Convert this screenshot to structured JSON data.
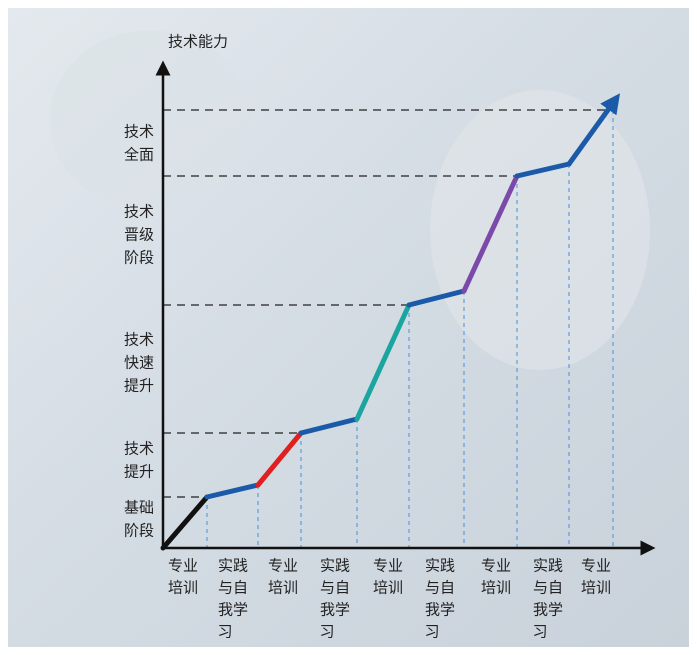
{
  "axis_title": "技术能力",
  "stages": [
    {
      "lines": [
        "技术",
        "全面"
      ]
    },
    {
      "lines": [
        "技术",
        "晋级",
        "阶段"
      ]
    },
    {
      "lines": [
        "技术",
        "快速",
        "提升"
      ]
    },
    {
      "lines": [
        "技术",
        "提升"
      ]
    },
    {
      "lines": [
        "基础",
        "阶段"
      ]
    }
  ],
  "steps": [
    {
      "lines": [
        "专业",
        "培训"
      ]
    },
    {
      "lines": [
        "实践",
        "与自",
        "我学",
        "习"
      ]
    },
    {
      "lines": [
        "专业",
        "培训"
      ]
    },
    {
      "lines": [
        "实践",
        "与自",
        "我学",
        "习"
      ]
    },
    {
      "lines": [
        "专业",
        "培训"
      ]
    },
    {
      "lines": [
        "实践",
        "与自",
        "我学",
        "习"
      ]
    },
    {
      "lines": [
        "专业",
        "培训"
      ]
    },
    {
      "lines": [
        "实践",
        "与自",
        "我学",
        "习"
      ]
    },
    {
      "lines": [
        "专业",
        "培训"
      ]
    }
  ]
}
